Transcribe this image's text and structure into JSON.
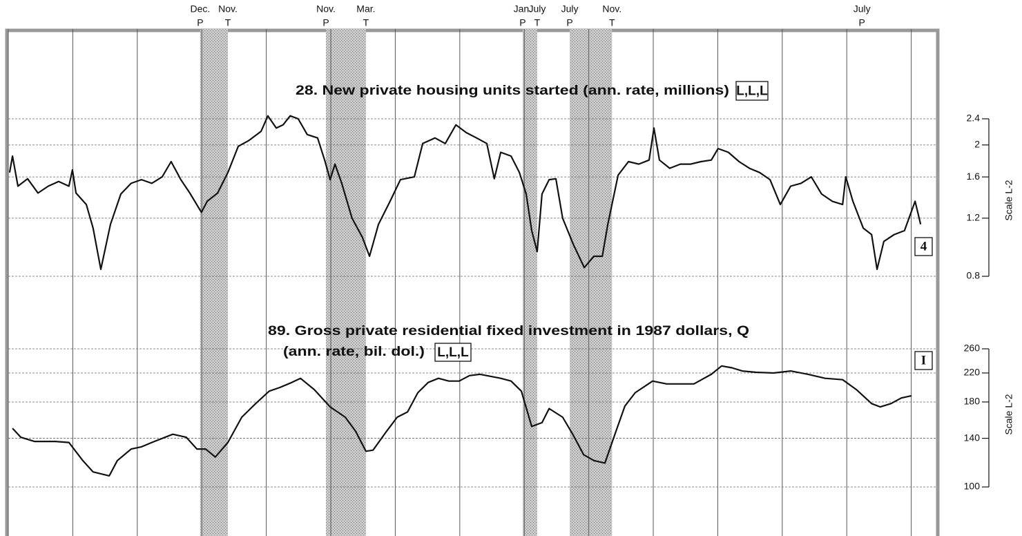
{
  "chart_data": {
    "type": "line",
    "xlim": [
      0,
      28.8
    ],
    "xticks": [
      0,
      2,
      4,
      6,
      8,
      10,
      12,
      14,
      16,
      18,
      20,
      22,
      24,
      26,
      28
    ],
    "grid": true,
    "turning_points": [
      {
        "x": 5.95,
        "month": "Dec.",
        "type": "P"
      },
      {
        "x": 6.81,
        "month": "Nov.",
        "type": "T"
      },
      {
        "x": 9.85,
        "month": "Nov.",
        "type": "P"
      },
      {
        "x": 11.09,
        "month": "Mar.",
        "type": "T"
      },
      {
        "x": 15.95,
        "month": "Jan.",
        "type": "P"
      },
      {
        "x": 16.4,
        "month": "July",
        "type": "T"
      },
      {
        "x": 17.41,
        "month": "July",
        "type": "P"
      },
      {
        "x": 18.72,
        "month": "Nov.",
        "type": "T"
      },
      {
        "x": 26.47,
        "month": "July",
        "type": "P"
      }
    ],
    "panels": [
      {
        "title": [
          "28. New private housing units started (ann. rate, millions)"
        ],
        "title_box": "L,L,L",
        "series_label": "4",
        "ylabel": "Scale L-2",
        "log": true,
        "ylim": [
          0.8,
          2.4
        ],
        "yticks": [
          0.8,
          1.2,
          1.6,
          2.0,
          2.4
        ],
        "color": "#111111",
        "x": [
          0.04,
          0.13,
          0.3,
          0.6,
          0.92,
          1.24,
          1.56,
          1.88,
          1.99,
          2.1,
          2.42,
          2.63,
          2.87,
          3.17,
          3.49,
          3.81,
          4.13,
          4.45,
          4.77,
          5.05,
          5.35,
          5.63,
          5.99,
          6.17,
          6.49,
          6.81,
          7.13,
          7.45,
          7.84,
          8.05,
          8.31,
          8.52,
          8.74,
          8.99,
          9.27,
          9.59,
          9.81,
          9.98,
          10.13,
          10.34,
          10.66,
          10.98,
          11.2,
          11.48,
          11.84,
          12.16,
          12.59,
          12.85,
          13.23,
          13.55,
          13.88,
          14.2,
          14.52,
          14.84,
          15.07,
          15.27,
          15.59,
          15.85,
          16.06,
          16.23,
          16.4,
          16.55,
          16.77,
          16.98,
          17.19,
          17.52,
          17.86,
          18.16,
          18.42,
          18.59,
          18.91,
          19.23,
          19.55,
          19.87,
          20.02,
          20.19,
          20.51,
          20.84,
          21.16,
          21.48,
          21.8,
          22.01,
          22.33,
          22.66,
          22.98,
          23.3,
          23.62,
          23.94,
          24.26,
          24.58,
          24.9,
          25.22,
          25.55,
          25.87,
          25.97,
          26.19,
          26.51,
          26.77,
          26.94,
          27.15,
          27.47,
          27.79,
          28.12,
          28.29
        ],
        "values": [
          1.65,
          1.85,
          1.5,
          1.58,
          1.43,
          1.5,
          1.55,
          1.5,
          1.68,
          1.43,
          1.32,
          1.12,
          0.84,
          1.15,
          1.42,
          1.53,
          1.57,
          1.53,
          1.6,
          1.78,
          1.57,
          1.43,
          1.25,
          1.35,
          1.43,
          1.65,
          1.98,
          2.06,
          2.2,
          2.45,
          2.25,
          2.3,
          2.45,
          2.4,
          2.15,
          2.1,
          1.8,
          1.57,
          1.75,
          1.53,
          1.2,
          1.05,
          0.92,
          1.15,
          1.35,
          1.57,
          1.6,
          2.02,
          2.1,
          2.02,
          2.3,
          2.18,
          2.1,
          2.02,
          1.58,
          1.9,
          1.85,
          1.65,
          1.42,
          1.1,
          0.95,
          1.42,
          1.57,
          1.58,
          1.2,
          1.0,
          0.85,
          0.92,
          0.92,
          1.15,
          1.62,
          1.78,
          1.75,
          1.8,
          2.25,
          1.8,
          1.7,
          1.75,
          1.75,
          1.78,
          1.8,
          1.95,
          1.9,
          1.78,
          1.7,
          1.65,
          1.57,
          1.32,
          1.5,
          1.53,
          1.6,
          1.42,
          1.35,
          1.32,
          1.6,
          1.35,
          1.12,
          1.07,
          0.84,
          1.02,
          1.07,
          1.1,
          1.35,
          1.15
        ]
      },
      {
        "title": [
          "89. Gross private residential fixed investment in 1987 dollars, Q",
          "(ann. rate, bil. dol.)"
        ],
        "title_box": "L,L,L",
        "series_label": "I",
        "ylabel": "Scale L-2",
        "log": true,
        "ylim": [
          100,
          260
        ],
        "yticks": [
          100,
          140,
          180,
          220,
          260
        ],
        "color": "#111111",
        "x": [
          0.13,
          0.39,
          0.81,
          1.46,
          1.88,
          2.31,
          2.63,
          3.13,
          3.38,
          3.81,
          4.13,
          4.45,
          5.1,
          5.52,
          5.85,
          6.12,
          6.42,
          6.81,
          7.24,
          7.67,
          8.09,
          8.42,
          8.74,
          9.06,
          9.49,
          9.98,
          10.45,
          10.77,
          11.09,
          11.31,
          11.73,
          12.06,
          12.38,
          12.7,
          13.02,
          13.34,
          13.66,
          13.98,
          14.3,
          14.63,
          14.95,
          15.27,
          15.59,
          15.91,
          16.23,
          16.55,
          16.77,
          17.19,
          17.52,
          17.84,
          18.16,
          18.5,
          18.8,
          19.12,
          19.44,
          19.98,
          20.41,
          20.84,
          21.26,
          21.8,
          22.12,
          22.44,
          22.76,
          23.19,
          23.73,
          24.26,
          24.8,
          25.33,
          25.87,
          26.3,
          26.77,
          27.04,
          27.37,
          27.69,
          28.01
        ],
        "values": [
          150,
          141,
          137,
          137,
          136,
          120,
          111,
          108,
          120,
          130,
          132,
          136,
          144,
          141,
          130,
          130,
          123,
          136,
          162,
          178,
          194,
          199,
          205,
          212,
          196,
          174,
          162,
          147,
          128,
          129,
          147,
          162,
          168,
          192,
          206,
          212,
          208,
          208,
          216,
          218,
          215,
          212,
          208,
          194,
          152,
          156,
          172,
          162,
          143,
          125,
          120,
          118,
          143,
          175,
          192,
          208,
          204,
          204,
          204,
          218,
          231,
          228,
          223,
          221,
          220,
          223,
          218,
          212,
          210,
          196,
          178,
          174,
          178,
          185,
          188
        ]
      }
    ]
  }
}
